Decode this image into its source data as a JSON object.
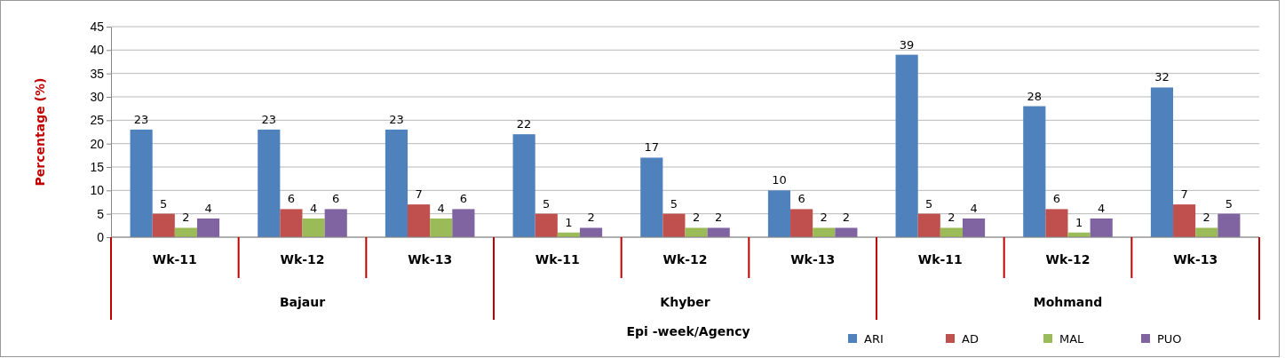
{
  "chart_data": {
    "type": "bar",
    "ylabel": "Percentage (%)",
    "xlabel": "Epi -week/Agency",
    "categories": [
      "Wk-11",
      "Wk-12",
      "Wk-13",
      "Wk-11",
      "Wk-12",
      "Wk-13",
      "Wk-11",
      "Wk-12",
      "Wk-13"
    ],
    "annotations": [
      "Bajaur",
      "Khyber",
      "Mohmand"
    ],
    "series": [
      {
        "name": "ARI",
        "color": "#4f81bd",
        "values": [
          23,
          23,
          23,
          22,
          17,
          10,
          39,
          28,
          32
        ]
      },
      {
        "name": "AD",
        "color": "#c0504d",
        "values": [
          5,
          6,
          7,
          5,
          5,
          6,
          5,
          6,
          7
        ]
      },
      {
        "name": "MAL",
        "color": "#9bbb59",
        "values": [
          2,
          4,
          4,
          1,
          2,
          2,
          2,
          1,
          2
        ]
      },
      {
        "name": "PUO",
        "color": "#8064a2",
        "values": [
          4,
          6,
          6,
          2,
          2,
          2,
          4,
          4,
          5
        ]
      }
    ],
    "ylim": [
      0,
      45
    ],
    "yticks": [
      0,
      5,
      10,
      15,
      20,
      25,
      30,
      35,
      40,
      45
    ],
    "grid": "y",
    "legend": "bottom right",
    "data_labels": true
  }
}
